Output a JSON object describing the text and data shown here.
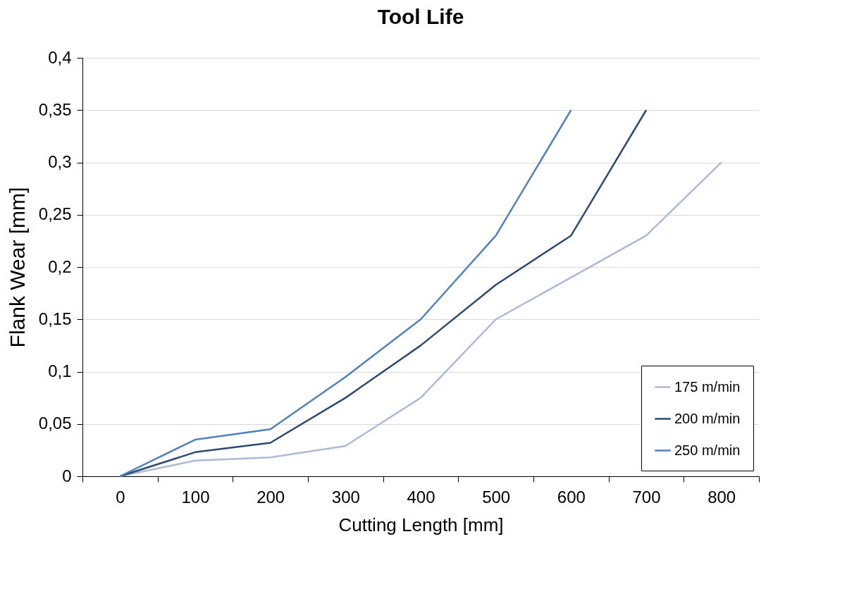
{
  "chart_data": {
    "type": "line",
    "title": "Tool Life",
    "xlabel": "Cutting Length [mm]",
    "ylabel": "Flank Wear [mm]",
    "categories": [
      "0",
      "100",
      "200",
      "300",
      "400",
      "500",
      "600",
      "700",
      "800"
    ],
    "series": [
      {
        "name": "175 m/min",
        "color": "#adb9d8",
        "values": [
          0,
          0.015,
          0.018,
          0.029,
          0.075,
          0.15,
          0.19,
          0.23,
          0.3
        ]
      },
      {
        "name": "200 m/min",
        "color": "#2c4a6e",
        "values": [
          0,
          0.023,
          0.032,
          0.075,
          0.125,
          0.183,
          0.23,
          0.35,
          null
        ]
      },
      {
        "name": "250 m/min",
        "color": "#4f81bd",
        "values": [
          0,
          0.035,
          0.045,
          0.095,
          0.15,
          0.23,
          0.35,
          null,
          null
        ]
      }
    ],
    "ylim": [
      0,
      0.4
    ],
    "yticks": [
      0,
      {
        "value": 0.05,
        "label": "0,05"
      },
      {
        "value": 0.1,
        "label": "0,1"
      },
      {
        "value": 0.15,
        "label": "0,15"
      },
      {
        "value": 0.2,
        "label": "0,2"
      },
      {
        "value": 0.25,
        "label": "0,25"
      },
      {
        "value": 0.3,
        "label": "0,3"
      },
      {
        "value": 0.35,
        "label": "0,35"
      },
      {
        "value": 0.4,
        "label": "0,4"
      }
    ],
    "grid": "y",
    "legend": "bottom right",
    "marker": "none",
    "line_style": "solid"
  }
}
